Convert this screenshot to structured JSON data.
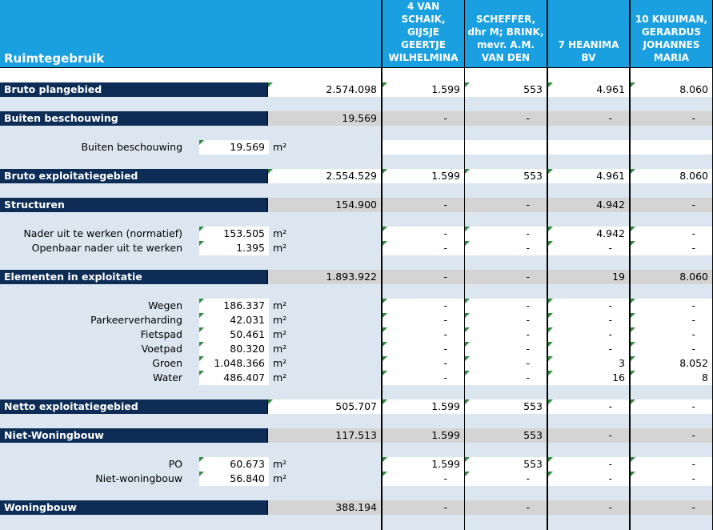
{
  "title": "Ruimtegebruik",
  "columns": [
    "4 VAN SCHAIK, GIJSJE GEERTJE WILHELMINA",
    "SCHEFFER, dhr M; BRINK, mevr. A.M. VAN DEN",
    "7 HEANIMA BV",
    "10 KNUIMAN, GERARDUS JOHANNES MARIA"
  ],
  "unit": "m²",
  "sections": [
    {
      "label": "Bruto plangebied",
      "total": "2.574.098",
      "values": [
        "1.599",
        "553",
        "4.961",
        "8.060"
      ],
      "rows": []
    },
    {
      "label": "Buiten beschouwing",
      "total": "19.569",
      "values": [
        "-",
        "-",
        "-",
        "-"
      ],
      "rows": [
        {
          "label": "Buiten beschouwing",
          "value": "19.569",
          "values": [
            "",
            "",
            "",
            ""
          ]
        }
      ]
    },
    {
      "label": "Bruto exploitatiegebied",
      "total": "2.554.529",
      "values": [
        "1.599",
        "553",
        "4.961",
        "8.060"
      ],
      "rows": []
    },
    {
      "label": "Structuren",
      "total": "154.900",
      "values": [
        "-",
        "-",
        "4.942",
        "-"
      ],
      "rows": [
        {
          "label": "Nader uit te werken (normatief)",
          "value": "153.505",
          "values": [
            "-",
            "-",
            "4.942",
            "-"
          ]
        },
        {
          "label": "Openbaar nader uit te werken",
          "value": "1.395",
          "values": [
            "-",
            "-",
            "-",
            "-"
          ]
        }
      ]
    },
    {
      "label": "Elementen in exploitatie",
      "total": "1.893.922",
      "values": [
        "-",
        "-",
        "19",
        "8.060"
      ],
      "rows": [
        {
          "label": "Wegen",
          "value": "186.337",
          "values": [
            "-",
            "-",
            "-",
            "-"
          ]
        },
        {
          "label": "Parkeerverharding",
          "value": "42.031",
          "values": [
            "-",
            "-",
            "-",
            "-"
          ]
        },
        {
          "label": "Fietspad",
          "value": "50.461",
          "values": [
            "-",
            "-",
            "-",
            "-"
          ]
        },
        {
          "label": "Voetpad",
          "value": "80.320",
          "values": [
            "-",
            "-",
            "-",
            "-"
          ]
        },
        {
          "label": "Groen",
          "value": "1.048.366",
          "values": [
            "-",
            "-",
            "3",
            "8.052"
          ]
        },
        {
          "label": "Water",
          "value": "486.407",
          "values": [
            "-",
            "-",
            "16",
            "8"
          ]
        }
      ]
    },
    {
      "label": "Netto exploitatiegebied",
      "total": "505.707",
      "values": [
        "1.599",
        "553",
        "-",
        "-"
      ],
      "rows": []
    },
    {
      "label": "Niet-Woningbouw",
      "total": "117.513",
      "values": [
        "1.599",
        "553",
        "-",
        "-"
      ],
      "rows": [
        {
          "label": "PO",
          "value": "60.673",
          "values": [
            "1.599",
            "553",
            "-",
            "-"
          ]
        },
        {
          "label": "Niet-woningbouw",
          "value": "56.840",
          "values": [
            "-",
            "-",
            "-",
            "-"
          ]
        }
      ]
    },
    {
      "label": "Woningbouw",
      "total": "388.194",
      "values": [
        "-",
        "-",
        "-",
        "-"
      ],
      "rows": []
    }
  ]
}
